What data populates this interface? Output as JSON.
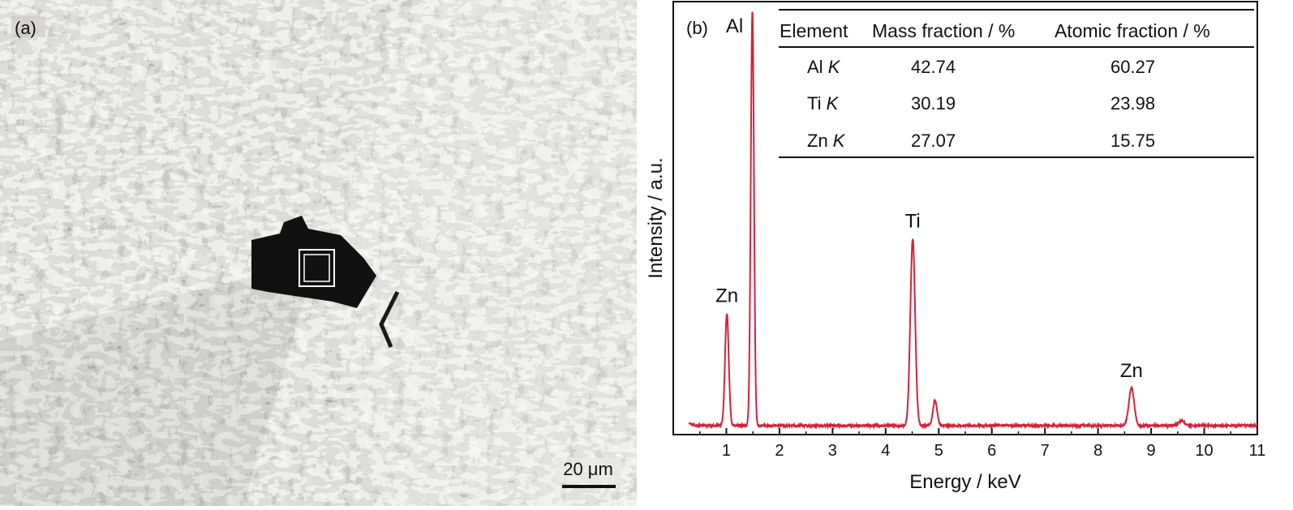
{
  "panel_a": {
    "label": "(a)",
    "scale_bar_label": "20 μm"
  },
  "chart_data": {
    "type": "line",
    "panel_label": "(b)",
    "xlabel": "Energy / keV",
    "ylabel": "Intensity / a.u.",
    "xlim": [
      0,
      11
    ],
    "ylim": [
      0,
      100
    ],
    "x_ticks": [
      1,
      2,
      3,
      4,
      5,
      6,
      7,
      8,
      9,
      10,
      11
    ],
    "grid": false,
    "series": [
      {
        "color": "#d4213a",
        "baseline": 1,
        "peaks": [
          {
            "x": 1.01,
            "height": 27,
            "width": 0.035
          },
          {
            "x": 1.49,
            "height": 100,
            "width": 0.03
          },
          {
            "x": 4.51,
            "height": 45,
            "width": 0.045
          },
          {
            "x": 4.93,
            "height": 6,
            "width": 0.04
          },
          {
            "x": 8.63,
            "height": 9,
            "width": 0.05
          },
          {
            "x": 9.57,
            "height": 1.2,
            "width": 0.05
          }
        ]
      }
    ],
    "annotations": [
      {
        "text": "Al",
        "x": 1.49
      },
      {
        "text": "Zn",
        "x": 1.01
      },
      {
        "text": "Ti",
        "x": 4.51
      },
      {
        "text": "Zn",
        "x": 8.63
      }
    ],
    "table": {
      "headers": [
        "Element",
        "Mass fraction / %",
        "Atomic fraction / %"
      ],
      "rows": [
        {
          "element": "Al",
          "line": "K",
          "mass": "42.74",
          "atomic": "60.27"
        },
        {
          "element": "Ti",
          "line": "K",
          "mass": "30.19",
          "atomic": "23.98"
        },
        {
          "element": "Zn",
          "line": "K",
          "mass": "27.07",
          "atomic": "15.75"
        }
      ]
    }
  }
}
